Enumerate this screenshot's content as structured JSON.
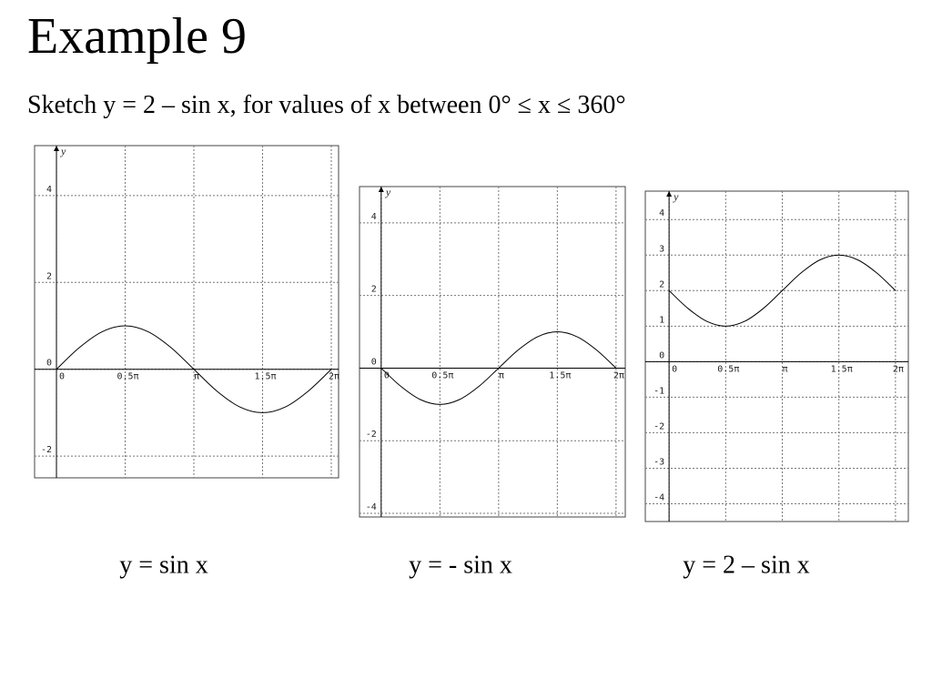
{
  "header": {
    "title": "Example 9",
    "subtitle": "Sketch y = 2 – sin x, for values of x between 0° ≤ x ≤ 360°"
  },
  "chart_data": [
    {
      "type": "line",
      "title": "y = sin x",
      "y_label": "y",
      "x": [
        0,
        0.5236,
        1.0472,
        1.5708,
        2.0944,
        2.618,
        3.1416,
        3.6652,
        4.1888,
        4.7124,
        5.236,
        5.7596,
        6.2832
      ],
      "series": [
        {
          "color": "#000000",
          "values": [
            0,
            0.5,
            0.866,
            1,
            0.866,
            0.5,
            0,
            -0.5,
            -0.866,
            -1,
            -0.866,
            -0.5,
            0
          ]
        }
      ],
      "xlim": [
        -0.5,
        6.45
      ],
      "ylim": [
        -2.5,
        5.15
      ],
      "xticks": [
        0,
        {
          "value": 1.5708,
          "label": "0.5π"
        },
        {
          "value": 3.1416,
          "label": "π"
        },
        {
          "value": 4.7124,
          "label": "1.5π"
        },
        {
          "value": 6.2832,
          "label": "2π"
        }
      ],
      "yticks": [
        -2,
        0,
        2,
        4
      ],
      "grid": true
    },
    {
      "type": "line",
      "title": "y = - sin x",
      "y_label": "y",
      "x": [
        0,
        0.5236,
        1.0472,
        1.5708,
        2.0944,
        2.618,
        3.1416,
        3.6652,
        4.1888,
        4.7124,
        5.236,
        5.7596,
        6.2832
      ],
      "series": [
        {
          "color": "#000000",
          "values": [
            0,
            -0.5,
            -0.866,
            -1,
            -0.866,
            -0.5,
            0,
            0.5,
            0.866,
            1,
            0.866,
            0.5,
            0
          ]
        }
      ],
      "xlim": [
        -0.58,
        6.53
      ],
      "ylim": [
        -4.1,
        5
      ],
      "xticks": [
        0,
        {
          "value": 1.5708,
          "label": "0.5π"
        },
        {
          "value": 3.1416,
          "label": "π"
        },
        {
          "value": 4.7124,
          "label": "1.5π"
        },
        {
          "value": 6.2832,
          "label": "2π"
        }
      ],
      "yticks": [
        -4,
        -2,
        0,
        2,
        4
      ],
      "grid": true
    },
    {
      "type": "line",
      "title": "y = 2 – sin x",
      "y_label": "y",
      "x": [
        0,
        0.5236,
        1.0472,
        1.5708,
        2.0944,
        2.618,
        3.1416,
        3.6652,
        4.1888,
        4.7124,
        5.236,
        5.7596,
        6.2832
      ],
      "series": [
        {
          "color": "#000000",
          "values": [
            2,
            1.5,
            1.134,
            1,
            1.134,
            1.5,
            2,
            2.5,
            2.866,
            3,
            2.866,
            2.5,
            2
          ]
        }
      ],
      "xlim": [
        -0.66,
        6.64
      ],
      "ylim": [
        -4.5,
        4.8
      ],
      "xticks": [
        0,
        {
          "value": 1.5708,
          "label": "0.5π"
        },
        {
          "value": 3.1416,
          "label": "π"
        },
        {
          "value": 4.7124,
          "label": "1.5π"
        },
        {
          "value": 6.2832,
          "label": "2π"
        }
      ],
      "yticks": [
        -4,
        -3,
        -2,
        -1,
        0,
        1,
        2,
        3,
        4
      ],
      "grid": true
    }
  ]
}
